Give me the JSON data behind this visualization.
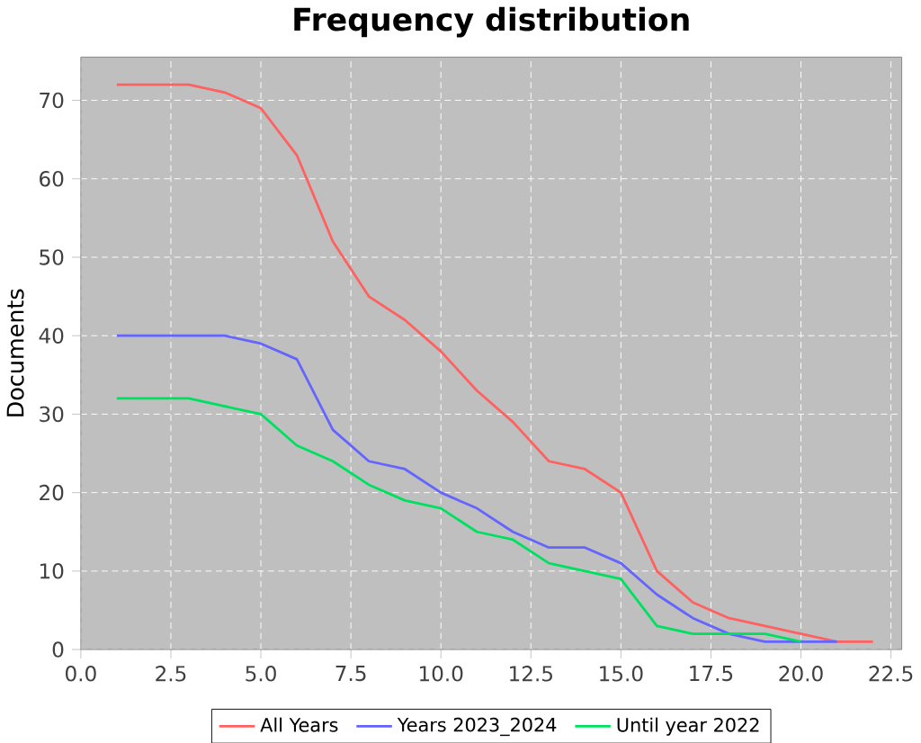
{
  "chart_data": {
    "type": "line",
    "title": "Frequency distribution",
    "ylabel": "Documents",
    "x": [
      1,
      2,
      3,
      4,
      5,
      6,
      7,
      8,
      9,
      10,
      11,
      12,
      13,
      14,
      15,
      16,
      17,
      18,
      19,
      20,
      21,
      22
    ],
    "series": [
      {
        "name": "All Years",
        "color": "#ff6060",
        "values": [
          72,
          72,
          72,
          71,
          69,
          63,
          52,
          45,
          42,
          38,
          33,
          29,
          24,
          23,
          20,
          10,
          6,
          4,
          3,
          2,
          1,
          1
        ]
      },
      {
        "name": "Years 2023_2024",
        "color": "#6464ff",
        "values": [
          40,
          40,
          40,
          40,
          39,
          37,
          28,
          24,
          23,
          20,
          18,
          15,
          13,
          13,
          11,
          7,
          4,
          2,
          1,
          1,
          1,
          null
        ]
      },
      {
        "name": "Until year 2022",
        "color": "#00e060",
        "values": [
          32,
          32,
          32,
          31,
          30,
          26,
          24,
          21,
          19,
          18,
          15,
          14,
          11,
          10,
          9,
          3,
          2,
          2,
          2,
          1,
          null,
          null
        ]
      }
    ],
    "xlim": [
      0,
      22.8
    ],
    "ylim": [
      0,
      75.5
    ],
    "xticks": [
      {
        "value": 0,
        "label": "0.0"
      },
      {
        "value": 2.5,
        "label": "2.5"
      },
      {
        "value": 5,
        "label": "5.0"
      },
      {
        "value": 7.5,
        "label": "7.5"
      },
      {
        "value": 10,
        "label": "10.0"
      },
      {
        "value": 12.5,
        "label": "12.5"
      },
      {
        "value": 15,
        "label": "15.0"
      },
      {
        "value": 17.5,
        "label": "17.5"
      },
      {
        "value": 20,
        "label": "20.0"
      },
      {
        "value": 22.5,
        "label": "22.5"
      }
    ],
    "yticks": [
      0,
      10,
      20,
      30,
      40,
      50,
      60,
      70
    ],
    "grid": true,
    "legend": "bottom",
    "line_style": "solid",
    "marker": "none"
  }
}
